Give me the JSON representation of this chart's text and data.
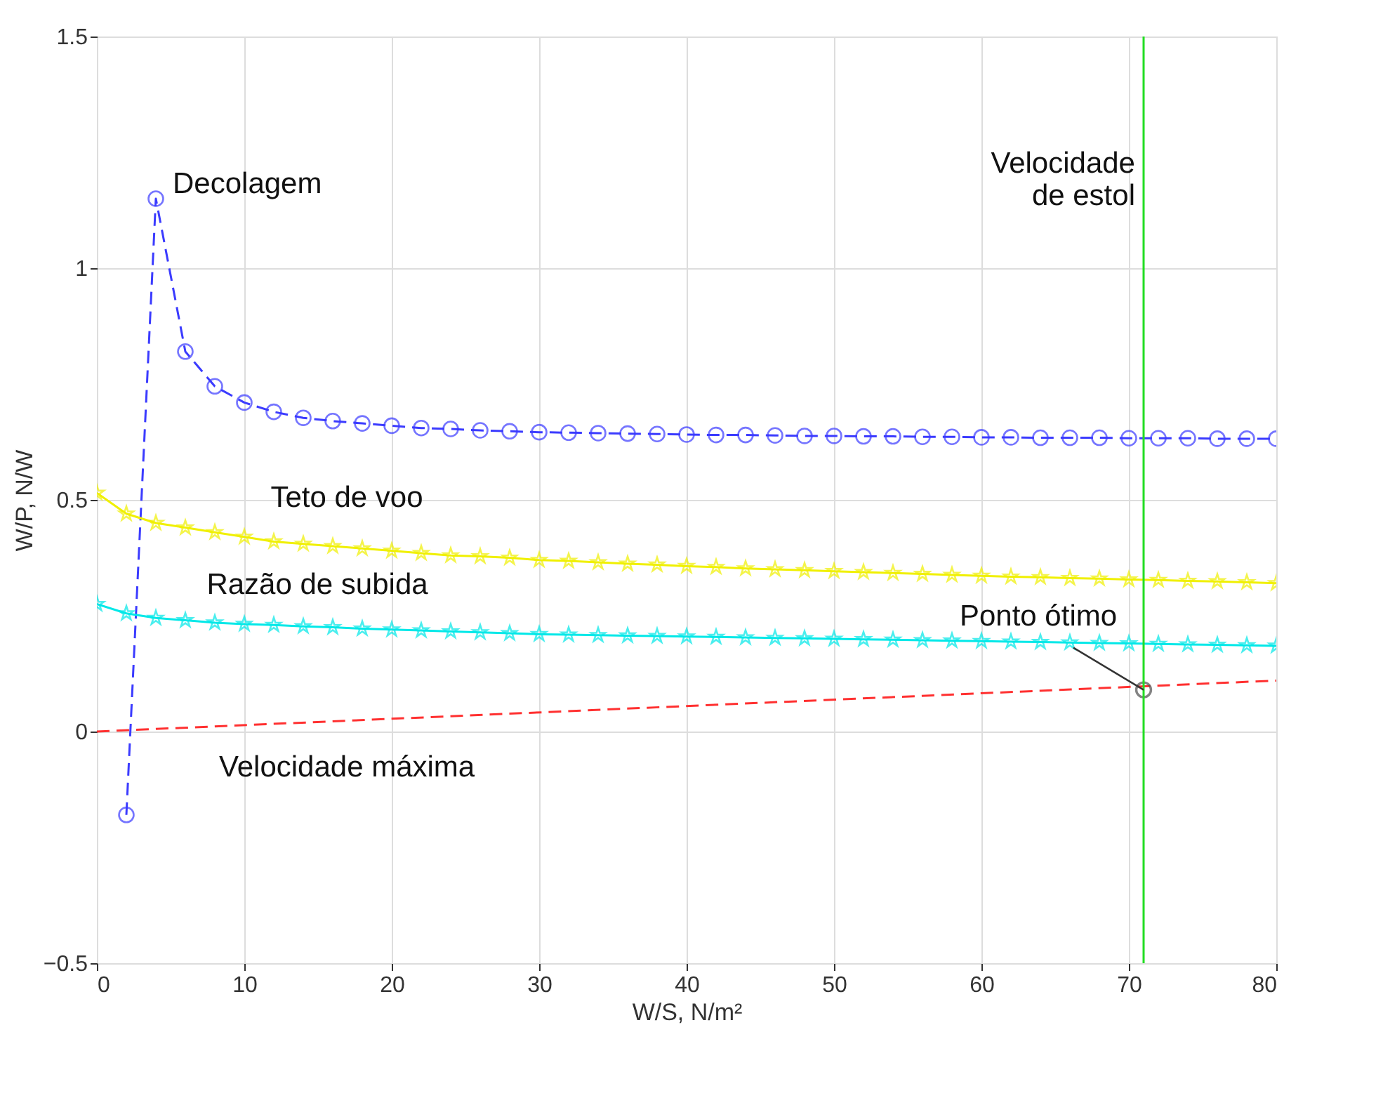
{
  "chart_data": {
    "type": "line",
    "xlabel": "W/S, N/m²",
    "ylabel": "W/P, N/W",
    "xlim": [
      0,
      80
    ],
    "ylim": [
      -0.5,
      1.5
    ],
    "xticks": [
      0,
      10,
      20,
      30,
      40,
      50,
      60,
      70,
      80
    ],
    "yticks": [
      -0.5,
      0,
      0.5,
      1,
      1.5
    ],
    "grid": true,
    "legend": false,
    "series": [
      {
        "name": "Decolagem",
        "color": "#3b3bff",
        "marker": "circle",
        "line_style": "dashed",
        "x": [
          2,
          4,
          6,
          8,
          10,
          12,
          14,
          16,
          18,
          20,
          22,
          24,
          26,
          28,
          30,
          32,
          34,
          36,
          38,
          40,
          42,
          44,
          46,
          48,
          50,
          52,
          54,
          56,
          58,
          60,
          62,
          64,
          66,
          68,
          70,
          72,
          74,
          76,
          78,
          80
        ],
        "values": [
          -0.18,
          1.15,
          0.82,
          0.745,
          0.71,
          0.69,
          0.677,
          0.67,
          0.665,
          0.66,
          0.655,
          0.653,
          0.65,
          0.648,
          0.646,
          0.645,
          0.644,
          0.643,
          0.642,
          0.641,
          0.64,
          0.64,
          0.639,
          0.638,
          0.638,
          0.637,
          0.637,
          0.636,
          0.636,
          0.635,
          0.635,
          0.634,
          0.634,
          0.634,
          0.633,
          0.633,
          0.633,
          0.632,
          0.632,
          0.632
        ]
      },
      {
        "name": "Teto de voo",
        "color": "#f0f000",
        "marker": "star",
        "line_style": "solid",
        "x": [
          0,
          2,
          4,
          6,
          8,
          10,
          12,
          14,
          16,
          18,
          20,
          22,
          24,
          26,
          28,
          30,
          32,
          34,
          36,
          38,
          40,
          42,
          44,
          46,
          48,
          50,
          52,
          54,
          56,
          58,
          60,
          62,
          64,
          66,
          68,
          70,
          72,
          74,
          76,
          78,
          80
        ],
        "values": [
          0.515,
          0.47,
          0.45,
          0.44,
          0.43,
          0.42,
          0.41,
          0.405,
          0.4,
          0.395,
          0.39,
          0.385,
          0.38,
          0.378,
          0.375,
          0.37,
          0.368,
          0.365,
          0.362,
          0.36,
          0.357,
          0.355,
          0.352,
          0.35,
          0.348,
          0.346,
          0.344,
          0.342,
          0.34,
          0.338,
          0.336,
          0.334,
          0.333,
          0.331,
          0.33,
          0.328,
          0.327,
          0.325,
          0.324,
          0.322,
          0.32
        ]
      },
      {
        "name": "Razão de subida",
        "color": "#00e8e8",
        "marker": "star",
        "line_style": "solid",
        "x": [
          0,
          2,
          4,
          6,
          8,
          10,
          12,
          14,
          16,
          18,
          20,
          22,
          24,
          26,
          28,
          30,
          32,
          34,
          36,
          38,
          40,
          42,
          44,
          46,
          48,
          50,
          52,
          54,
          56,
          58,
          60,
          62,
          64,
          66,
          68,
          70,
          72,
          74,
          76,
          78,
          80
        ],
        "values": [
          0.275,
          0.255,
          0.245,
          0.24,
          0.235,
          0.232,
          0.23,
          0.227,
          0.225,
          0.222,
          0.22,
          0.218,
          0.216,
          0.214,
          0.212,
          0.21,
          0.209,
          0.208,
          0.207,
          0.206,
          0.205,
          0.204,
          0.203,
          0.202,
          0.201,
          0.2,
          0.199,
          0.198,
          0.197,
          0.196,
          0.195,
          0.194,
          0.193,
          0.192,
          0.191,
          0.19,
          0.189,
          0.188,
          0.187,
          0.186,
          0.185
        ]
      },
      {
        "name": "Velocidade máxima",
        "color": "#ff3030",
        "marker": "none",
        "line_style": "dashed",
        "x": [
          0,
          80
        ],
        "values": [
          0,
          0.11
        ]
      },
      {
        "type": "scatter",
        "color": "#505050",
        "marker": "circle",
        "x": [
          71
        ],
        "values": [
          0.09
        ]
      }
    ],
    "ref_lines": [
      {
        "axis": "x",
        "value": 71,
        "label": "Velocidade de estol",
        "color": "#22dd22",
        "line_style": "solid"
      }
    ],
    "annotations": [
      {
        "text": "Ponto ótimo",
        "x": 71,
        "y": 0.09
      }
    ]
  }
}
